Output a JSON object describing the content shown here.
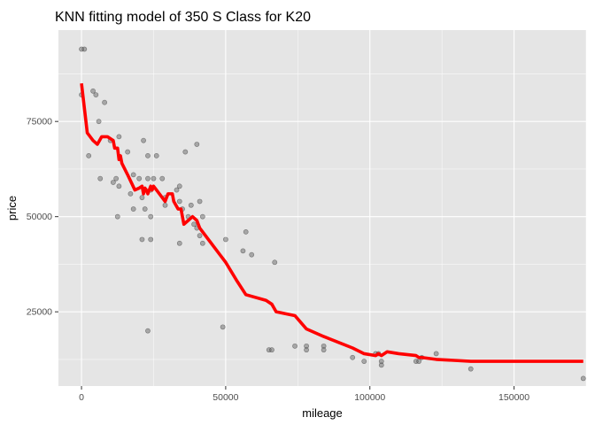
{
  "chart_data": {
    "type": "scatter",
    "title": "KNN fitting model of 350 S Class for K20",
    "xlabel": "mileage",
    "ylabel": "price",
    "xlim": [
      -8000,
      175000
    ],
    "ylim": [
      5500,
      99000
    ],
    "x_ticks": [
      0,
      50000,
      100000,
      150000
    ],
    "x_tick_labels": [
      "0",
      "50000",
      "100000",
      "150000"
    ],
    "y_ticks": [
      25000,
      50000,
      75000
    ],
    "y_tick_labels": [
      "25000",
      "50000",
      "75000"
    ],
    "grid": true,
    "legend": "none",
    "colors": {
      "panel": "#e5e5e5",
      "grid_major": "#ffffff",
      "points": "#595959",
      "fit_line": "#ff0000"
    },
    "series": [
      {
        "kind": "points",
        "points": [
          [
            0,
            94000
          ],
          [
            1000,
            94000
          ],
          [
            0,
            82000
          ],
          [
            4000,
            83000
          ],
          [
            5000,
            82000
          ],
          [
            2500,
            66000
          ],
          [
            6000,
            75000
          ],
          [
            8000,
            80000
          ],
          [
            6500,
            60000
          ],
          [
            10000,
            70000
          ],
          [
            11000,
            59000
          ],
          [
            12000,
            60000
          ],
          [
            13000,
            71000
          ],
          [
            13000,
            58000
          ],
          [
            12500,
            50000
          ],
          [
            16000,
            67000
          ],
          [
            18000,
            61000
          ],
          [
            18000,
            52000
          ],
          [
            17000,
            56000
          ],
          [
            20000,
            60000
          ],
          [
            21000,
            55000
          ],
          [
            21000,
            44000
          ],
          [
            21500,
            70000
          ],
          [
            22000,
            52000
          ],
          [
            23000,
            66000
          ],
          [
            23000,
            60000
          ],
          [
            24000,
            50000
          ],
          [
            24000,
            44000
          ],
          [
            24000,
            57000
          ],
          [
            25000,
            60000
          ],
          [
            26000,
            66000
          ],
          [
            28000,
            60000
          ],
          [
            29000,
            55000
          ],
          [
            29000,
            53000
          ],
          [
            23000,
            20000
          ],
          [
            33000,
            57000
          ],
          [
            34000,
            58000
          ],
          [
            34000,
            54000
          ],
          [
            34000,
            43000
          ],
          [
            35000,
            52000
          ],
          [
            36000,
            67000
          ],
          [
            37000,
            50000
          ],
          [
            38000,
            53000
          ],
          [
            39000,
            48000
          ],
          [
            40000,
            69000
          ],
          [
            40000,
            47000
          ],
          [
            41000,
            54000
          ],
          [
            41000,
            45000
          ],
          [
            42000,
            50000
          ],
          [
            42000,
            43000
          ],
          [
            49000,
            21000
          ],
          [
            50000,
            44000
          ],
          [
            56000,
            41000
          ],
          [
            57000,
            46000
          ],
          [
            59000,
            40000
          ],
          [
            65000,
            15000
          ],
          [
            66000,
            15000
          ],
          [
            67000,
            38000
          ],
          [
            74000,
            16000
          ],
          [
            78000,
            16000
          ],
          [
            78000,
            15000
          ],
          [
            84000,
            16000
          ],
          [
            84000,
            15000
          ],
          [
            94000,
            13000
          ],
          [
            98000,
            12000
          ],
          [
            102000,
            14000
          ],
          [
            103000,
            14000
          ],
          [
            104000,
            12000
          ],
          [
            104000,
            11000
          ],
          [
            116000,
            12000
          ],
          [
            117000,
            12000
          ],
          [
            118000,
            13000
          ],
          [
            123000,
            14000
          ],
          [
            135000,
            10000
          ],
          [
            174000,
            7500
          ]
        ]
      },
      {
        "kind": "line",
        "points": [
          [
            0,
            85000
          ],
          [
            2000,
            72000
          ],
          [
            4000,
            70000
          ],
          [
            5500,
            69000
          ],
          [
            7000,
            71000
          ],
          [
            9000,
            71000
          ],
          [
            11000,
            70000
          ],
          [
            11500,
            68000
          ],
          [
            12500,
            68000
          ],
          [
            13000,
            65000
          ],
          [
            13500,
            66000
          ],
          [
            14000,
            64000
          ],
          [
            16000,
            61000
          ],
          [
            18500,
            57000
          ],
          [
            20000,
            57500
          ],
          [
            21000,
            58000
          ],
          [
            21500,
            56000
          ],
          [
            22000,
            57500
          ],
          [
            22500,
            57000
          ],
          [
            23000,
            56000
          ],
          [
            24000,
            58000
          ],
          [
            24500,
            57000
          ],
          [
            25000,
            58000
          ],
          [
            26000,
            57000
          ],
          [
            28000,
            55000
          ],
          [
            29000,
            54000
          ],
          [
            30000,
            56000
          ],
          [
            31500,
            56000
          ],
          [
            32000,
            54000
          ],
          [
            33500,
            52000
          ],
          [
            34500,
            52000
          ],
          [
            35500,
            48000
          ],
          [
            37000,
            49000
          ],
          [
            38500,
            50000
          ],
          [
            40000,
            49000
          ],
          [
            41000,
            47000
          ],
          [
            42000,
            46000
          ],
          [
            48000,
            40000
          ],
          [
            50000,
            38000
          ],
          [
            54000,
            33000
          ],
          [
            57000,
            29500
          ],
          [
            64000,
            28000
          ],
          [
            66000,
            27000
          ],
          [
            67500,
            25000
          ],
          [
            74000,
            24000
          ],
          [
            78000,
            20500
          ],
          [
            84000,
            18500
          ],
          [
            94000,
            15500
          ],
          [
            98000,
            14000
          ],
          [
            102000,
            13500
          ],
          [
            103000,
            14000
          ],
          [
            104000,
            13500
          ],
          [
            106000,
            14500
          ],
          [
            110000,
            14000
          ],
          [
            116000,
            13500
          ],
          [
            117000,
            13000
          ],
          [
            118000,
            13000
          ],
          [
            123000,
            12500
          ],
          [
            135000,
            12000
          ],
          [
            174000,
            12000
          ]
        ]
      }
    ]
  }
}
